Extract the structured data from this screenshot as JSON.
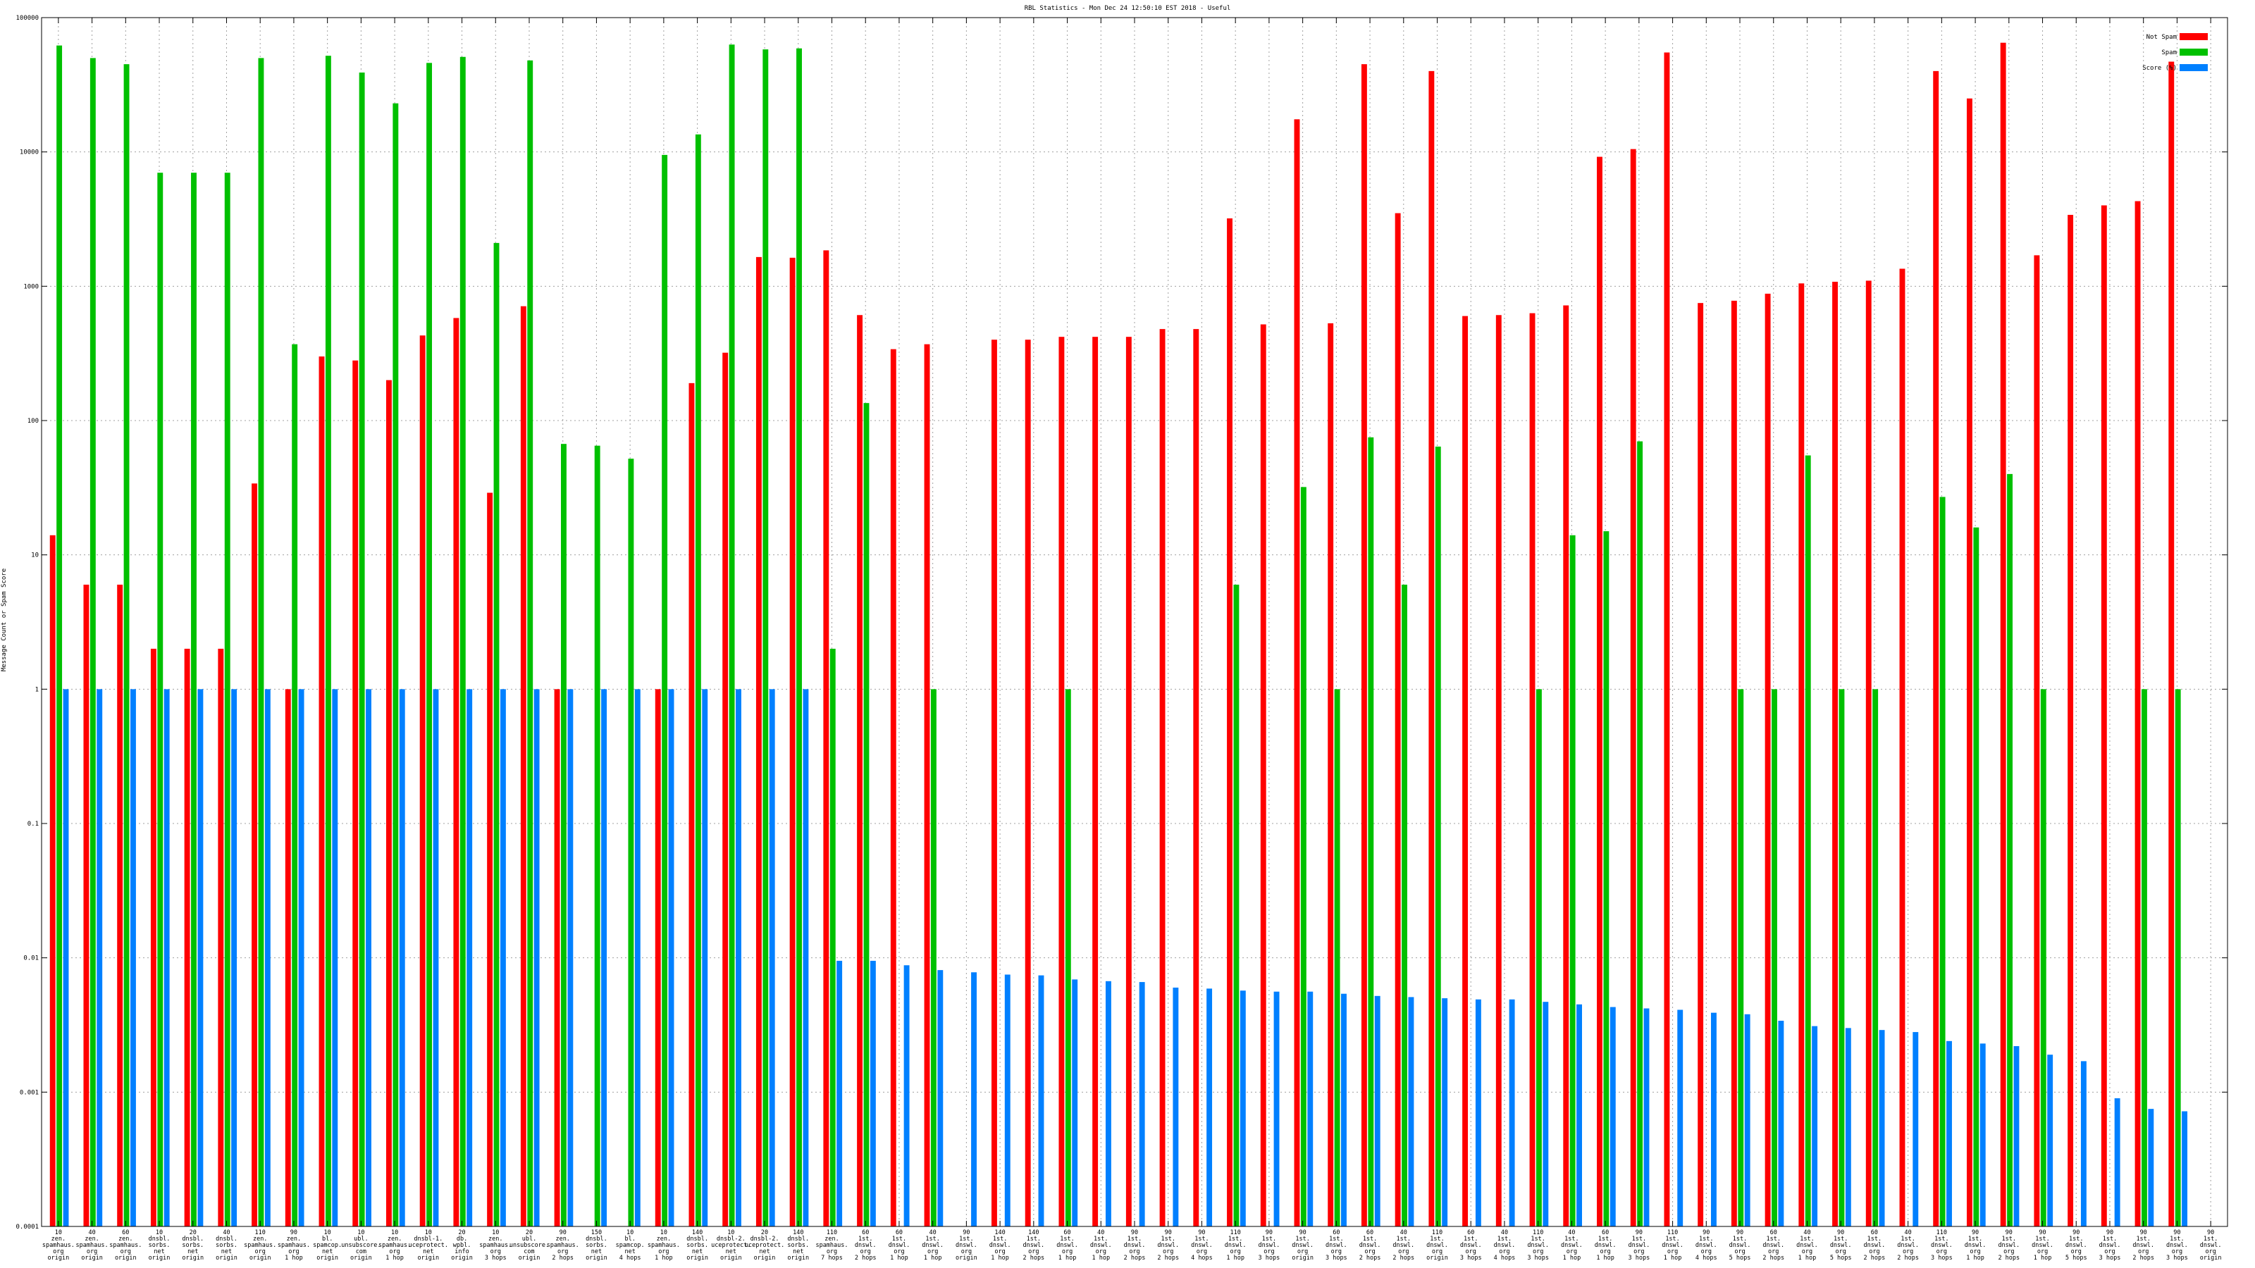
{
  "chart_data": {
    "type": "bar",
    "title": "RBL Statistics - Mon Dec 24 12:50:10 EST 2018 - Useful",
    "ylabel": "Message Count or Spam Score",
    "xlabel": "",
    "yscale": "log",
    "ylim": [
      0.0001,
      100000
    ],
    "yticks": [
      {
        "v": 100000,
        "label": "100000"
      },
      {
        "v": 10000,
        "label": "10000"
      },
      {
        "v": 1000,
        "label": "1000"
      },
      {
        "v": 100,
        "label": "100"
      },
      {
        "v": 10,
        "label": "10"
      },
      {
        "v": 1,
        "label": "1"
      },
      {
        "v": 0.1,
        "label": "0.1"
      },
      {
        "v": 0.01,
        "label": "0.01"
      },
      {
        "v": 0.001,
        "label": "0.001"
      },
      {
        "v": 0.0001,
        "label": "0.0001"
      }
    ],
    "grid": true,
    "legend": "top-right",
    "colors": {
      "notspam": "#ff0000",
      "spam": "#00c000",
      "score": "#0080ff"
    },
    "categories": [
      [
        "10",
        "zen.",
        "spamhaus.",
        "org",
        "origin"
      ],
      [
        "40",
        "zen.",
        "spamhaus.",
        "org",
        "origin"
      ],
      [
        "60",
        "zen.",
        "spamhaus.",
        "org",
        "origin"
      ],
      [
        "10",
        "dnsbl.",
        "sorbs.",
        "net",
        "origin"
      ],
      [
        "20",
        "dnsbl.",
        "sorbs.",
        "net",
        "origin"
      ],
      [
        "40",
        "dnsbl.",
        "sorbs.",
        "net",
        "origin"
      ],
      [
        "110",
        "zen.",
        "spamhaus.",
        "org",
        "origin"
      ],
      [
        "90",
        "zen.",
        "spamhaus.",
        "org",
        "1 hop"
      ],
      [
        "10",
        "bl.",
        "spamcop.",
        "net",
        "origin"
      ],
      [
        "10",
        "ubl.",
        "unsubscore.",
        "com",
        "origin"
      ],
      [
        "10",
        "zen.",
        "spamhaus.",
        "org",
        "1 hop"
      ],
      [
        "10",
        "dnsbl-1.",
        "uceprotect.",
        "net",
        "origin"
      ],
      [
        "20",
        "db.",
        "wpbl.",
        "info",
        "origin"
      ],
      [
        "10",
        "zen.",
        "spamhaus.",
        "org",
        "3 hops"
      ],
      [
        "20",
        "ubl.",
        "unsubscore.",
        "com",
        "origin"
      ],
      [
        "90",
        "zen.",
        "spamhaus.",
        "org",
        "2 hops"
      ],
      [
        "150",
        "dnsbl.",
        "sorbs.",
        "net",
        "origin"
      ],
      [
        "10",
        "bl.",
        "spamcop.",
        "net",
        "4 hops"
      ],
      [
        "10",
        "zen.",
        "spamhaus.",
        "org",
        "1 hop"
      ],
      [
        "140",
        "dnsbl.",
        "sorbs.",
        "net",
        "origin"
      ],
      [
        "10",
        "dnsbl-2.",
        "uceprotect.",
        "net",
        "origin"
      ],
      [
        "20",
        "dnsbl-2.",
        "uceprotect.",
        "net",
        "origin"
      ],
      [
        "140",
        "dnsbl.",
        "sorbs.",
        "net",
        "origin"
      ],
      [
        "110",
        "zen.",
        "spamhaus.",
        "org",
        "7 hops"
      ],
      [
        "60",
        "1st.",
        "dnswl.",
        "org",
        "2 hops"
      ],
      [
        "60",
        "1st.",
        "dnswl.",
        "org",
        "1 hop"
      ],
      [
        "40",
        "1st.",
        "dnswl.",
        "org",
        "1 hop"
      ],
      [
        "90",
        "1st.",
        "dnswl.",
        "org",
        "origin"
      ],
      [
        "140",
        "1st.",
        "dnswl.",
        "org",
        "1 hop"
      ],
      [
        "140",
        "1st.",
        "dnswl.",
        "org",
        "2 hops"
      ],
      [
        "60",
        "1st.",
        "dnswl.",
        "org",
        "1 hop"
      ],
      [
        "40",
        "1st.",
        "dnswl.",
        "org",
        "1 hop"
      ],
      [
        "90",
        "1st.",
        "dnswl.",
        "org",
        "2 hops"
      ],
      [
        "90",
        "1st.",
        "dnswl.",
        "org",
        "2 hops"
      ],
      [
        "90",
        "1st.",
        "dnswl.",
        "org",
        "4 hops"
      ],
      [
        "110",
        "1st.",
        "dnswl.",
        "org",
        "1 hop"
      ],
      [
        "90",
        "1st.",
        "dnswl.",
        "org",
        "3 hops"
      ],
      [
        "90",
        "1st.",
        "dnswl.",
        "org",
        "origin"
      ],
      [
        "60",
        "1st.",
        "dnswl.",
        "org",
        "3 hops"
      ],
      [
        "60",
        "1st.",
        "dnswl.",
        "org",
        "2 hops"
      ],
      [
        "40",
        "1st.",
        "dnswl.",
        "org",
        "2 hops"
      ],
      [
        "110",
        "1st.",
        "dnswl.",
        "org",
        "origin"
      ],
      [
        "60",
        "1st.",
        "dnswl.",
        "org",
        "3 hops"
      ],
      [
        "40",
        "1st.",
        "dnswl.",
        "org",
        "4 hops"
      ],
      [
        "110",
        "1st.",
        "dnswl.",
        "org",
        "3 hops"
      ],
      [
        "40",
        "1st.",
        "dnswl.",
        "org",
        "1 hop"
      ],
      [
        "60",
        "1st.",
        "dnswl.",
        "org",
        "1 hop"
      ],
      [
        "90",
        "1st.",
        "dnswl.",
        "org",
        "3 hops"
      ],
      [
        "110",
        "1st.",
        "dnswl.",
        "org",
        "1 hop"
      ],
      [
        "90",
        "1st.",
        "dnswl.",
        "org",
        "4 hops"
      ],
      [
        "90",
        "1st.",
        "dnswl.",
        "org",
        "5 hops"
      ],
      [
        "60",
        "1st.",
        "dnswl.",
        "org",
        "2 hops"
      ],
      [
        "40",
        "1st.",
        "dnswl.",
        "org",
        "1 hop"
      ],
      [
        "90",
        "1st.",
        "dnswl.",
        "org",
        "5 hops"
      ],
      [
        "60",
        "1st.",
        "dnswl.",
        "org",
        "2 hops"
      ],
      [
        "40",
        "1st.",
        "dnswl.",
        "org",
        "2 hops"
      ],
      [
        "110",
        "1st.",
        "dnswl.",
        "org",
        "3 hops"
      ],
      [
        "90",
        "1st.",
        "dnswl.",
        "org",
        "1 hop"
      ],
      [
        "90",
        "1st.",
        "dnswl.",
        "org",
        "2 hops"
      ],
      [
        "90",
        "1st.",
        "dnswl.",
        "org",
        "1 hop"
      ],
      [
        "90",
        "1st.",
        "dnswl.",
        "org",
        "5 hops"
      ],
      [
        "90",
        "1st.",
        "dnswl.",
        "org",
        "3 hops"
      ],
      [
        "90",
        "1st.",
        "dnswl.",
        "org",
        "2 hops"
      ],
      [
        "90",
        "1st.",
        "dnswl.",
        "org",
        "3 hops"
      ],
      [
        "90",
        "1st.",
        "dnswl.",
        "org",
        "origin"
      ]
    ],
    "series": [
      {
        "name": "Not Spam",
        "values": [
          14,
          6,
          6,
          2,
          2,
          2,
          34,
          1,
          300,
          280,
          200,
          430,
          580,
          29,
          710,
          1,
          null,
          null,
          1,
          190,
          320,
          1650,
          1630,
          1850,
          610,
          340,
          370,
          null,
          400,
          400,
          420,
          420,
          420,
          480,
          480,
          3200,
          520,
          17500,
          530,
          45000,
          3500,
          40000,
          600,
          610,
          630,
          720,
          9200,
          10500,
          55000,
          750,
          780,
          880,
          1050,
          1080,
          1100,
          1350,
          40000,
          25000,
          65000,
          1700,
          3400,
          4000,
          4300,
          47000,
          null
        ]
      },
      {
        "name": "Spam",
        "values": [
          62000,
          50000,
          45000,
          7000,
          7000,
          7000,
          50000,
          370,
          52000,
          39000,
          23000,
          46000,
          51000,
          2100,
          48000,
          67,
          65,
          52,
          9500,
          13500,
          63000,
          58000,
          59000,
          2,
          135,
          null,
          1,
          null,
          null,
          null,
          1,
          null,
          null,
          null,
          null,
          6,
          null,
          32,
          1,
          75,
          6,
          64,
          null,
          null,
          1,
          14,
          15,
          70,
          null,
          null,
          1,
          1,
          55,
          1,
          1,
          null,
          27,
          16,
          40,
          1,
          null,
          null,
          1,
          1,
          null
        ]
      },
      {
        "name": "Score (%)",
        "values": [
          1,
          1,
          1,
          1,
          1,
          1,
          1,
          1,
          1,
          1,
          1,
          1,
          1,
          1,
          1,
          1,
          1,
          1,
          1,
          1,
          1,
          1,
          1,
          0.0095,
          0.0095,
          0.0088,
          0.0081,
          0.0078,
          0.0075,
          0.0074,
          0.0069,
          0.0067,
          0.0066,
          0.006,
          0.0059,
          0.0057,
          0.0056,
          0.0056,
          0.0054,
          0.0052,
          0.0051,
          0.005,
          0.0049,
          0.0049,
          0.0047,
          0.0045,
          0.0043,
          0.0042,
          0.0041,
          0.0039,
          0.0038,
          0.0034,
          0.0031,
          0.003,
          0.0029,
          0.0028,
          0.0024,
          0.0023,
          0.0022,
          0.0019,
          0.0017,
          0.0009,
          0.00075,
          0.00072,
          null
        ]
      }
    ]
  }
}
